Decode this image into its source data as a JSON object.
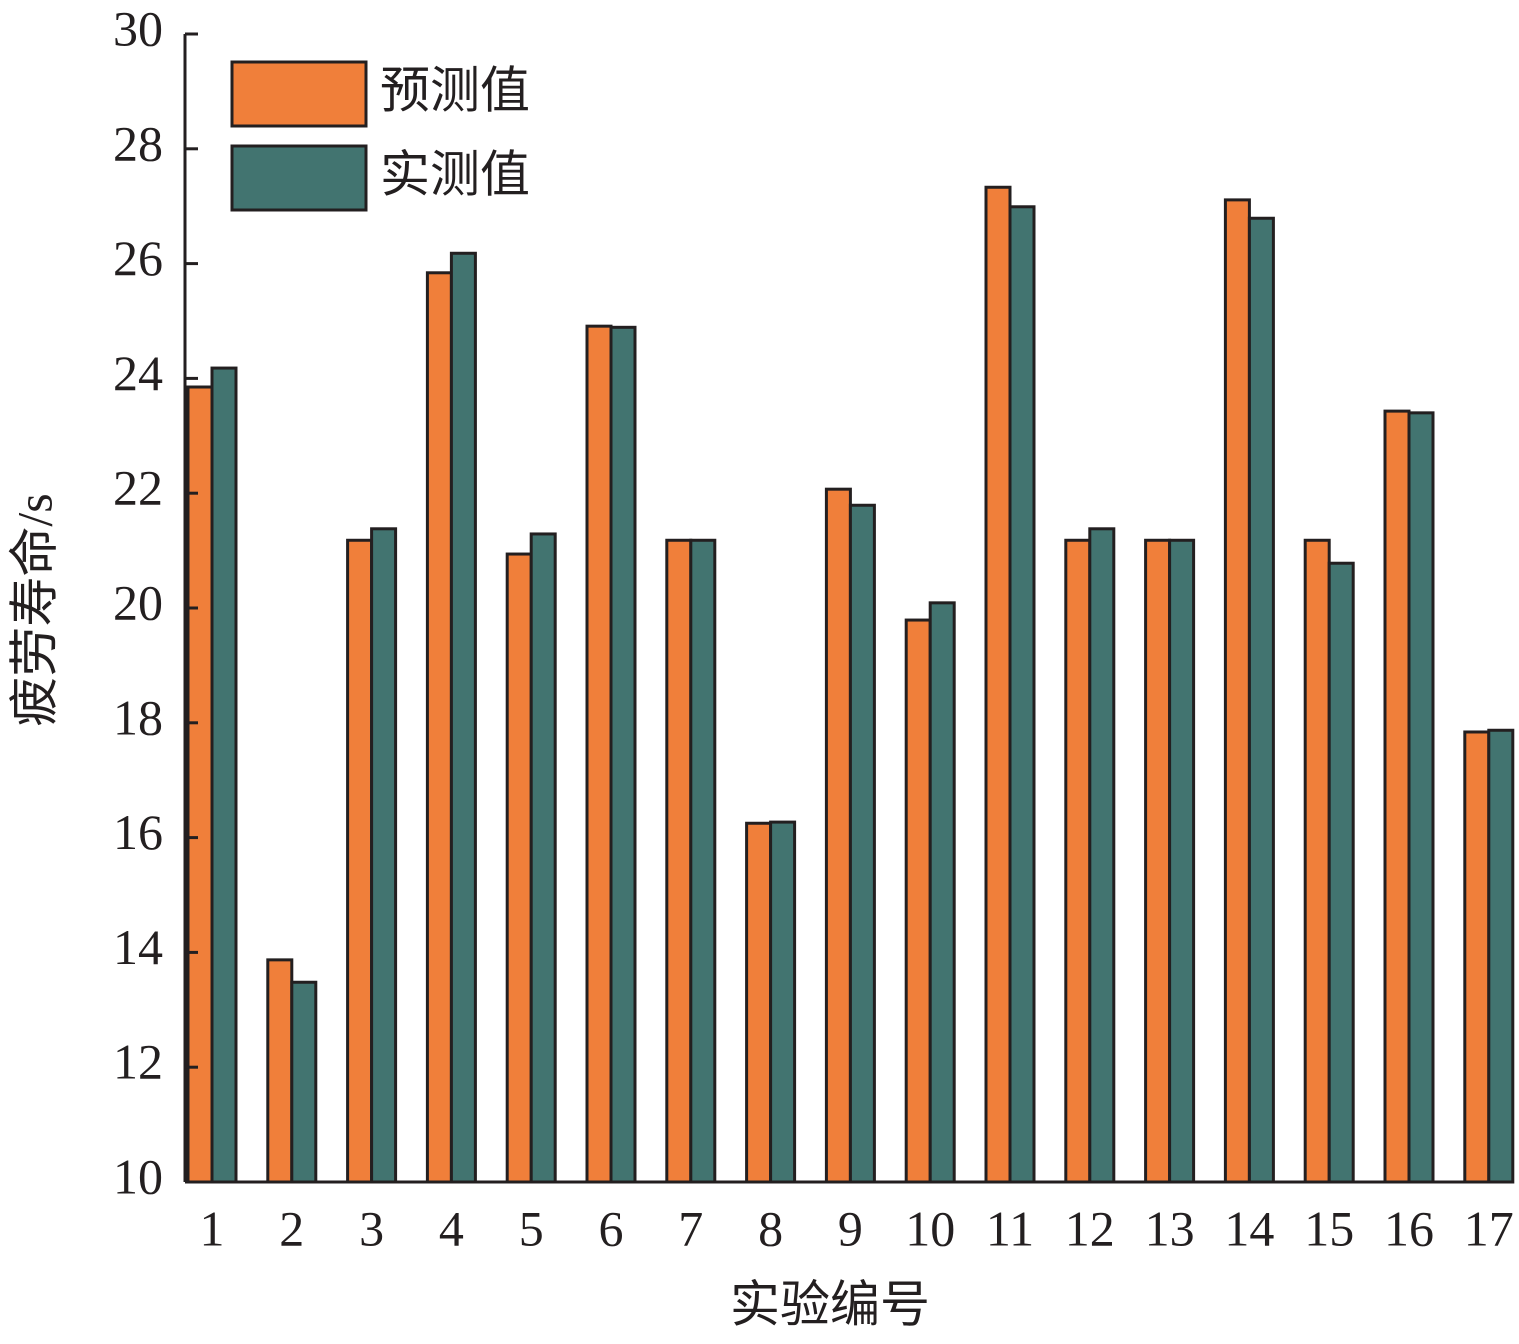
{
  "chart_data": {
    "type": "bar",
    "x_label": "实验编号",
    "y_label": "疲劳寿命/s",
    "categories": [
      "1",
      "2",
      "3",
      "4",
      "5",
      "6",
      "7",
      "8",
      "9",
      "10",
      "11",
      "12",
      "13",
      "14",
      "15",
      "16",
      "17"
    ],
    "series": [
      {
        "name": "预测值",
        "color": "#f07f3a",
        "values": [
          23.85,
          13.87,
          21.18,
          25.84,
          20.94,
          24.91,
          21.18,
          16.25,
          22.07,
          19.79,
          27.33,
          21.18,
          21.18,
          27.11,
          21.18,
          23.43,
          17.84
        ]
      },
      {
        "name": "实测值",
        "color": "#427470",
        "values": [
          24.18,
          13.48,
          21.38,
          26.18,
          21.29,
          24.89,
          21.18,
          16.27,
          21.79,
          20.09,
          26.99,
          21.38,
          21.18,
          26.79,
          20.78,
          23.4,
          17.87
        ]
      }
    ],
    "ylim": [
      10,
      30
    ],
    "yticks": [
      10,
      12,
      14,
      16,
      18,
      20,
      22,
      24,
      26,
      28,
      30
    ]
  }
}
